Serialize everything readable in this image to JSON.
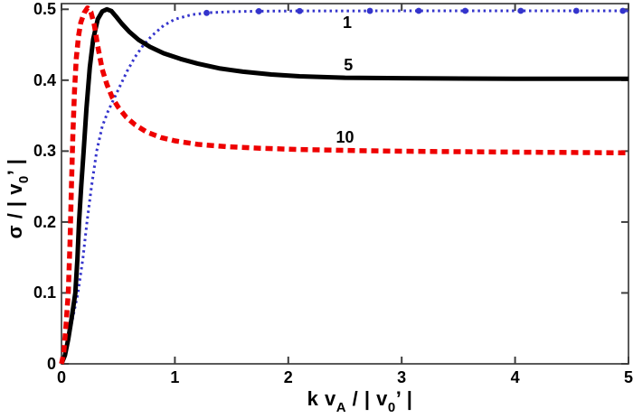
{
  "figure": {
    "background": "#ffffff"
  },
  "chart_data": {
    "type": "line",
    "title": "",
    "xlabel": "k v_A / | v_0' |",
    "ylabel": "sigma / | v_0' |",
    "xlabel_parts": {
      "pre": "k v",
      "sub1": "A",
      "mid": " / | v",
      "sub2": "0",
      "post": "’ |"
    },
    "ylabel_parts": {
      "pre": "σ / | v",
      "sub": "0",
      "post": "’ |"
    },
    "xlim": [
      0,
      5
    ],
    "ylim": [
      0,
      0.508
    ],
    "xticks": [
      0,
      1,
      2,
      3,
      4,
      5
    ],
    "yticks": [
      0,
      0.1,
      0.2,
      0.3,
      0.4,
      0.5
    ],
    "grid": false,
    "legend_position": "inline-labels-on-curves",
    "axis_color": "#3d3d3d",
    "series": [
      {
        "name": "1",
        "color": "#3434cc",
        "style": "dotted",
        "width": 3,
        "dash": "2.5 3.8",
        "x": [
          0,
          0.03,
          0.06,
          0.1,
          0.145,
          0.19,
          0.225,
          0.265,
          0.31,
          0.36,
          0.41,
          0.46,
          0.52,
          0.58,
          0.65,
          0.72,
          0.8,
          0.9,
          1.0,
          1.15,
          1.3,
          1.5,
          1.75,
          2.0,
          2.5,
          3.0,
          4.0,
          5.0
        ],
        "y": [
          0,
          0.012,
          0.035,
          0.065,
          0.1,
          0.15,
          0.2,
          0.25,
          0.3,
          0.335,
          0.356,
          0.373,
          0.393,
          0.413,
          0.433,
          0.449,
          0.463,
          0.477,
          0.486,
          0.4925,
          0.4952,
          0.4967,
          0.4973,
          0.4975,
          0.4977,
          0.4978,
          0.4978,
          0.4978
        ],
        "marker_x": [
          1.28,
          1.74,
          2.1,
          2.72,
          3.15,
          3.56,
          4.05,
          4.54,
          4.95
        ],
        "marker_radius": 3.4,
        "asymptote": 0.5
      },
      {
        "name": "5",
        "color": "#000000",
        "style": "solid",
        "width": 5,
        "dash": "",
        "x": [
          0,
          0.03,
          0.06,
          0.09,
          0.122,
          0.14,
          0.155,
          0.175,
          0.195,
          0.22,
          0.25,
          0.28,
          0.32,
          0.36,
          0.4,
          0.44,
          0.48,
          0.53,
          0.6,
          0.68,
          0.78,
          0.9,
          1.05,
          1.2,
          1.4,
          1.6,
          1.85,
          2.1,
          2.5,
          3.0,
          4.0,
          5.0
        ],
        "y": [
          0,
          0.012,
          0.035,
          0.065,
          0.1,
          0.148,
          0.2,
          0.252,
          0.3,
          0.36,
          0.418,
          0.458,
          0.486,
          0.497,
          0.5,
          0.4975,
          0.49,
          0.48,
          0.468,
          0.457,
          0.447,
          0.438,
          0.43,
          0.4235,
          0.4165,
          0.412,
          0.408,
          0.4055,
          0.4035,
          0.4028,
          0.402,
          0.402
        ],
        "marker_x": [],
        "asymptote": 0.4
      },
      {
        "name": "10",
        "color": "#ee0000",
        "style": "dashed",
        "width": 5.5,
        "dash": "8 5",
        "x": [
          0,
          0.02,
          0.04,
          0.06,
          0.075,
          0.088,
          0.1,
          0.115,
          0.13,
          0.15,
          0.17,
          0.2,
          0.23,
          0.26,
          0.29,
          0.32,
          0.36,
          0.4,
          0.45,
          0.5,
          0.57,
          0.65,
          0.75,
          0.88,
          1.0,
          1.2,
          1.45,
          1.75,
          2.1,
          2.5,
          3.0,
          4.0,
          5.0
        ],
        "y": [
          0,
          0.015,
          0.055,
          0.1,
          0.17,
          0.25,
          0.32,
          0.385,
          0.43,
          0.462,
          0.481,
          0.495,
          0.502,
          0.496,
          0.477,
          0.448,
          0.415,
          0.394,
          0.375,
          0.362,
          0.348,
          0.337,
          0.327,
          0.319,
          0.3145,
          0.3095,
          0.3063,
          0.304,
          0.3022,
          0.301,
          0.2998,
          0.2985,
          0.2975
        ],
        "marker_x": [],
        "asymptote": 0.3
      }
    ],
    "annotations": [
      {
        "text": "1",
        "x": 2.52,
        "y": 0.481
      },
      {
        "text": "5",
        "x": 2.53,
        "y": 0.421
      },
      {
        "text": "10",
        "x": 2.5,
        "y": 0.319
      }
    ]
  }
}
